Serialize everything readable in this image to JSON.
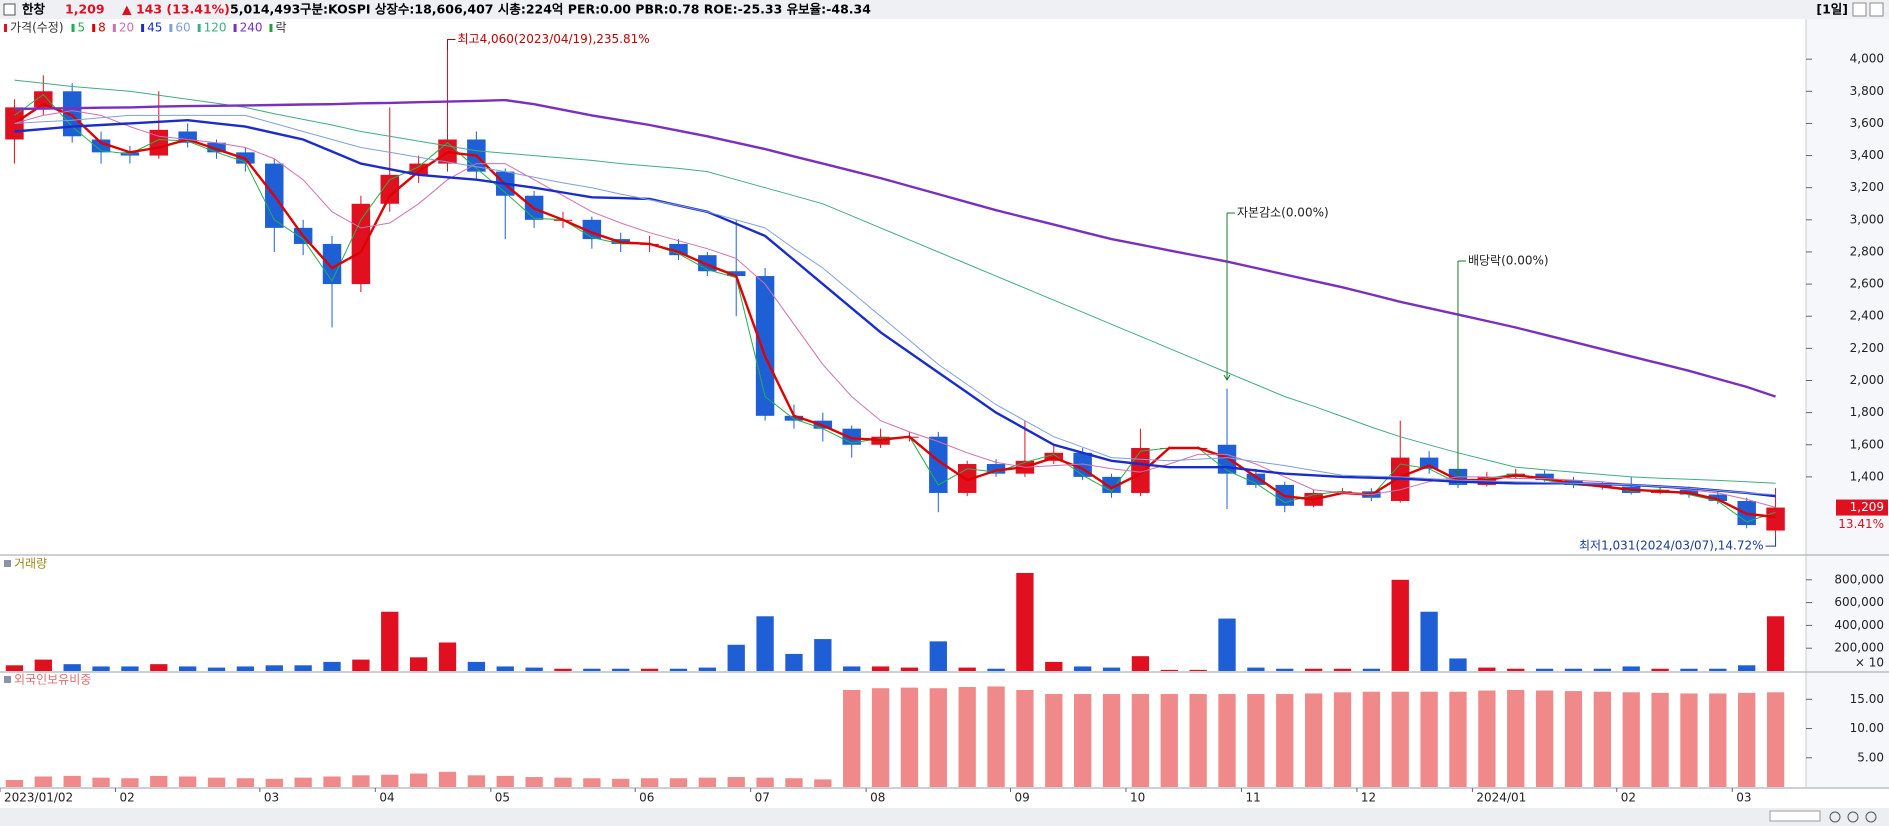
{
  "header": {
    "name": "한창",
    "price": "1,209",
    "change": "▲ 143 (13.41%)",
    "volume": "5,014,493",
    "info": "구분:KOSPI 상장수:18,606,407 시총:224억 PER:0.00 PBR:0.78 ROE:-25.33 유보율:-48.34",
    "period": "[1일]"
  },
  "chart_data": [
    {
      "type": "candlestick",
      "legend_title": "가격(수정)",
      "legend_suffix": "락",
      "last_change": "13.41%",
      "categories": [
        "2023/01/02",
        null,
        null,
        null,
        "02",
        null,
        null,
        null,
        null,
        "03",
        null,
        null,
        null,
        "04",
        null,
        null,
        null,
        "05",
        null,
        null,
        null,
        null,
        "06",
        null,
        null,
        null,
        "07",
        null,
        null,
        null,
        "08",
        null,
        null,
        null,
        null,
        "09",
        null,
        null,
        null,
        "10",
        null,
        null,
        null,
        "11",
        null,
        null,
        null,
        "12",
        null,
        null,
        null,
        "2024/01",
        null,
        null,
        null,
        null,
        "02",
        null,
        null,
        null,
        "03",
        null
      ],
      "open": [
        3500,
        3700,
        3800,
        3500,
        3420,
        3400,
        3550,
        3480,
        3420,
        3350,
        2950,
        2850,
        2600,
        3100,
        3280,
        3350,
        3500,
        3300,
        3150,
        3000,
        3000,
        2880,
        2850,
        2850,
        2780,
        2680,
        2650,
        1780,
        1750,
        1700,
        1600,
        1650,
        1650,
        1300,
        1480,
        1420,
        1500,
        1550,
        1400,
        1300,
        1580,
        1580,
        1600,
        1420,
        1350,
        1220,
        1300,
        1310,
        1250,
        1520,
        1450,
        1350,
        1400,
        1420,
        1380,
        1350,
        1340,
        1300,
        1320,
        1290,
        1250,
        1066
      ],
      "high": [
        3750,
        3900,
        3850,
        3550,
        3460,
        3800,
        3600,
        3500,
        3450,
        3380,
        3000,
        2900,
        3150,
        3700,
        3400,
        4060,
        3550,
        3320,
        3180,
        3050,
        3020,
        2920,
        2900,
        2880,
        2800,
        3000,
        2700,
        1850,
        1800,
        1720,
        1700,
        1680,
        1680,
        1500,
        1510,
        1750,
        1600,
        1580,
        1420,
        1700,
        1590,
        1590,
        1950,
        1450,
        1370,
        1320,
        1330,
        1330,
        1750,
        1560,
        1460,
        1430,
        1450,
        1440,
        1400,
        1370,
        1400,
        1340,
        1340,
        1310,
        1270,
        1330
      ],
      "low": [
        3350,
        3650,
        3480,
        3350,
        3350,
        3380,
        3450,
        3380,
        3300,
        2800,
        2780,
        2330,
        2550,
        3050,
        3230,
        3300,
        3250,
        2880,
        2950,
        2950,
        2820,
        2800,
        2800,
        2750,
        2650,
        2400,
        1750,
        1700,
        1620,
        1520,
        1580,
        1620,
        1180,
        1280,
        1400,
        1400,
        1480,
        1380,
        1270,
        1280,
        1570,
        1570,
        1200,
        1330,
        1180,
        1210,
        1290,
        1250,
        1240,
        1420,
        1330,
        1340,
        1390,
        1370,
        1330,
        1320,
        1290,
        1290,
        1270,
        1230,
        1080,
        1031
      ],
      "close": [
        3700,
        3800,
        3520,
        3420,
        3400,
        3560,
        3480,
        3420,
        3350,
        2950,
        2850,
        2600,
        3100,
        3280,
        3350,
        3500,
        3300,
        3150,
        3000,
        3000,
        2880,
        2850,
        2850,
        2780,
        2680,
        2650,
        1780,
        1750,
        1700,
        1600,
        1650,
        1650,
        1300,
        1480,
        1420,
        1500,
        1550,
        1400,
        1300,
        1580,
        1580,
        1580,
        1420,
        1350,
        1220,
        1300,
        1310,
        1270,
        1520,
        1450,
        1350,
        1400,
        1420,
        1380,
        1350,
        1340,
        1300,
        1320,
        1290,
        1250,
        1100,
        1209
      ],
      "up_color": "#e01020",
      "down_color": "#1f5fd6",
      "series": [
        {
          "name": "5",
          "color": "#22b14c",
          "width": 1,
          "values": [
            3650,
            3780,
            3580,
            3430,
            3410,
            3500,
            3490,
            3420,
            3360,
            3000,
            2880,
            2620,
            3000,
            3250,
            3330,
            3480,
            3320,
            3170,
            3010,
            3000,
            2890,
            2850,
            2850,
            2790,
            2690,
            2640,
            1900,
            1760,
            1700,
            1610,
            1640,
            1650,
            1350,
            1450,
            1430,
            1490,
            1540,
            1410,
            1310,
            1560,
            1580,
            1580,
            1440,
            1360,
            1240,
            1290,
            1310,
            1280,
            1480,
            1450,
            1360,
            1390,
            1420,
            1380,
            1350,
            1340,
            1310,
            1320,
            1290,
            1250,
            1120,
            1180
          ]
        },
        {
          "name": "8",
          "color": "#e00000",
          "width": 2.4,
          "values": [
            3600,
            3720,
            3650,
            3480,
            3420,
            3450,
            3500,
            3440,
            3380,
            3150,
            2900,
            2700,
            2800,
            3150,
            3300,
            3420,
            3400,
            3220,
            3070,
            3000,
            2920,
            2860,
            2850,
            2800,
            2720,
            2650,
            2150,
            1780,
            1720,
            1640,
            1630,
            1650,
            1500,
            1380,
            1440,
            1460,
            1520,
            1450,
            1330,
            1420,
            1580,
            1580,
            1520,
            1400,
            1280,
            1260,
            1300,
            1290,
            1400,
            1470,
            1380,
            1380,
            1410,
            1390,
            1360,
            1340,
            1320,
            1310,
            1300,
            1260,
            1170,
            1150
          ]
        },
        {
          "name": "20",
          "color": "#d070b0",
          "width": 1,
          "values": [
            3600,
            3650,
            3680,
            3650,
            3580,
            3520,
            3500,
            3480,
            3450,
            3380,
            3250,
            3050,
            2950,
            2980,
            3100,
            3250,
            3350,
            3350,
            3250,
            3150,
            3050,
            2980,
            2920,
            2870,
            2820,
            2760,
            2600,
            2350,
            2100,
            1900,
            1750,
            1680,
            1620,
            1550,
            1490,
            1460,
            1470,
            1480,
            1450,
            1430,
            1480,
            1540,
            1540,
            1480,
            1400,
            1320,
            1300,
            1290,
            1320,
            1370,
            1400,
            1400,
            1390,
            1390,
            1380,
            1370,
            1350,
            1340,
            1320,
            1300,
            1260,
            1210
          ]
        },
        {
          "name": "45",
          "color": "#1a2ccc",
          "width": 2.4,
          "values": [
            3550,
            3565,
            3580,
            3590,
            3600,
            3610,
            3620,
            3600,
            3580,
            3540,
            3500,
            3425,
            3350,
            3315,
            3280,
            3265,
            3250,
            3225,
            3200,
            3170,
            3140,
            3135,
            3130,
            3090,
            3050,
            2975,
            2900,
            2750,
            2600,
            2450,
            2300,
            2175,
            2050,
            1925,
            1800,
            1700,
            1600,
            1550,
            1500,
            1480,
            1460,
            1460,
            1460,
            1440,
            1420,
            1410,
            1400,
            1395,
            1390,
            1380,
            1370,
            1365,
            1360,
            1360,
            1360,
            1355,
            1350,
            1340,
            1330,
            1315,
            1300,
            1280
          ]
        },
        {
          "name": "60",
          "color": "#7f9fe0",
          "width": 1,
          "values": [
            3600,
            3610,
            3620,
            3635,
            3650,
            3650,
            3650,
            3650,
            3650,
            3600,
            3550,
            3500,
            3450,
            3420,
            3390,
            3360,
            3330,
            3300,
            3265,
            3230,
            3200,
            3160,
            3125,
            3090,
            3050,
            3000,
            2950,
            2820,
            2700,
            2550,
            2400,
            2250,
            2100,
            1975,
            1850,
            1750,
            1650,
            1585,
            1520,
            1510,
            1500,
            1510,
            1520,
            1495,
            1470,
            1440,
            1410,
            1405,
            1400,
            1390,
            1380,
            1375,
            1370,
            1365,
            1360,
            1355,
            1350,
            1340,
            1330,
            1315,
            1300,
            1290
          ]
        },
        {
          "name": "120",
          "color": "#3fae80",
          "width": 1,
          "values": [
            3870,
            3850,
            3830,
            3815,
            3800,
            3775,
            3750,
            3725,
            3700,
            3660,
            3625,
            3590,
            3550,
            3520,
            3490,
            3460,
            3430,
            3415,
            3400,
            3385,
            3370,
            3350,
            3335,
            3320,
            3300,
            3250,
            3200,
            3150,
            3100,
            3025,
            2950,
            2875,
            2800,
            2725,
            2650,
            2575,
            2500,
            2425,
            2350,
            2275,
            2200,
            2125,
            2050,
            1975,
            1900,
            1840,
            1775,
            1710,
            1650,
            1600,
            1550,
            1505,
            1460,
            1445,
            1430,
            1415,
            1400,
            1392,
            1385,
            1378,
            1370,
            1360
          ]
        },
        {
          "name": "240",
          "color": "#7a2fbf",
          "width": 2.4,
          "values": [
            3690,
            3692,
            3695,
            3698,
            3700,
            3705,
            3708,
            3710,
            3712,
            3715,
            3718,
            3720,
            3725,
            3728,
            3732,
            3736,
            3740,
            3745,
            3720,
            3685,
            3650,
            3620,
            3590,
            3555,
            3520,
            3480,
            3440,
            3395,
            3350,
            3305,
            3260,
            3210,
            3160,
            3110,
            3060,
            3015,
            2970,
            2925,
            2880,
            2845,
            2810,
            2775,
            2740,
            2700,
            2660,
            2620,
            2580,
            2535,
            2490,
            2450,
            2410,
            2370,
            2330,
            2285,
            2240,
            2195,
            2150,
            2105,
            2060,
            2010,
            1960,
            1900
          ]
        }
      ],
      "high_label": "최고4,060(2023/04/19),235.81%",
      "low_label": "최저1,031(2024/03/07),14.72%",
      "events": [
        {
          "text": "자본감소(0.00%)"
        },
        {
          "text": "배당락(0.00%)"
        }
      ],
      "ylim": [
        920,
        4250
      ],
      "yticks": [
        {
          "value": 1400,
          "label": "1,400"
        },
        {
          "value": 1600,
          "label": "1,600"
        },
        {
          "value": 1800,
          "label": "1,800"
        },
        {
          "value": 2000,
          "label": "2,000"
        },
        {
          "value": 2200,
          "label": "2,200"
        },
        {
          "value": 2400,
          "label": "2,400"
        },
        {
          "value": 2600,
          "label": "2,600"
        },
        {
          "value": 2800,
          "label": "2,800"
        },
        {
          "value": 3000,
          "label": "3,000"
        },
        {
          "value": 3200,
          "label": "3,200"
        },
        {
          "value": 3400,
          "label": "3,400"
        },
        {
          "value": 3600,
          "label": "3,600"
        },
        {
          "value": 3800,
          "label": "3,800"
        },
        {
          "value": 4000,
          "label": "4,000"
        }
      ]
    },
    {
      "type": "bar",
      "title": "거래량",
      "title_color": "#a08820",
      "unit_label": "× 10",
      "color_by_candle": true,
      "values": [
        50000,
        100000,
        60000,
        40000,
        40000,
        60000,
        40000,
        30000,
        40000,
        50000,
        50000,
        80000,
        100000,
        520000,
        120000,
        250000,
        80000,
        40000,
        30000,
        20000,
        20000,
        20000,
        20000,
        20000,
        30000,
        230000,
        480000,
        150000,
        280000,
        40000,
        40000,
        30000,
        260000,
        30000,
        20000,
        860000,
        80000,
        40000,
        30000,
        130000,
        10000,
        10000,
        460000,
        30000,
        20000,
        20000,
        20000,
        20000,
        800000,
        520000,
        110000,
        30000,
        20000,
        20000,
        20000,
        20000,
        40000,
        20000,
        20000,
        20000,
        50000,
        480000
      ],
      "ylim": [
        0,
        1000000
      ],
      "yticks": [
        {
          "value": 200000,
          "label": "200,000"
        },
        {
          "value": 400000,
          "label": "400,000"
        },
        {
          "value": 600000,
          "label": "600,000"
        },
        {
          "value": 800000,
          "label": "800,000"
        }
      ]
    },
    {
      "type": "bar",
      "title": "외국인보유비중",
      "title_color": "#e07070",
      "color": "#f08a8a",
      "values": [
        1.2,
        1.8,
        1.9,
        1.6,
        1.5,
        1.9,
        1.8,
        1.6,
        1.5,
        1.4,
        1.6,
        1.8,
        2.0,
        2.1,
        2.3,
        2.6,
        2.0,
        1.9,
        1.7,
        1.6,
        1.5,
        1.4,
        1.5,
        1.5,
        1.6,
        1.7,
        1.6,
        1.5,
        1.3,
        16.6,
        16.9,
        17.0,
        16.9,
        17.1,
        17.2,
        16.6,
        15.9,
        15.9,
        15.9,
        15.9,
        15.9,
        15.9,
        15.9,
        15.9,
        15.9,
        16.0,
        16.2,
        16.3,
        16.3,
        16.3,
        16.3,
        16.5,
        16.6,
        16.5,
        16.4,
        16.3,
        16.2,
        16.1,
        16.0,
        16.0,
        16.1,
        16.2
      ],
      "ylim": [
        0,
        19.5
      ],
      "yticks": [
        {
          "value": 5,
          "label": "5.00"
        },
        {
          "value": 10,
          "label": "10.00"
        },
        {
          "value": 15,
          "label": "15.00"
        }
      ]
    }
  ]
}
